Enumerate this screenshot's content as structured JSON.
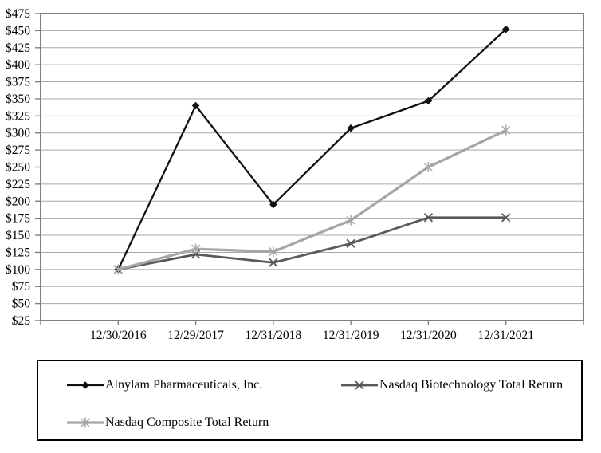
{
  "chart_data": {
    "type": "line",
    "title": "",
    "xlabel": "",
    "ylabel": "",
    "x_categories": [
      "12/30/2016",
      "12/29/2017",
      "12/31/2018",
      "12/31/2019",
      "12/31/2020",
      "12/31/2021"
    ],
    "ylim": [
      25,
      475
    ],
    "y_tick_step": 25,
    "y_tick_prefix": "$",
    "y_tick_labels": [
      "$475",
      "$450",
      "$425",
      "$400",
      "$375",
      "$350",
      "$325",
      "$300",
      "$275",
      "$250",
      "$225",
      "$200",
      "$175",
      "$150",
      "$125",
      "$100",
      "$75",
      "$50",
      "$25"
    ],
    "grid": "horizontal",
    "legend_position": "bottom-box",
    "series": [
      {
        "name": "Alnylam Pharmaceuticals, Inc.",
        "marker": "diamond",
        "color": "#111111",
        "line_width": 2.3,
        "values": [
          100,
          340,
          195,
          307,
          347,
          452
        ]
      },
      {
        "name": "Nasdaq Biotechnology Total Return",
        "marker": "x",
        "color": "#595959",
        "line_width": 2.8,
        "values": [
          100,
          122,
          110,
          138,
          176,
          176
        ]
      },
      {
        "name": "Nasdaq Composite Total Return",
        "marker": "asterisk",
        "color": "#a6a6a6",
        "line_width": 3.2,
        "values": [
          100,
          130,
          126,
          172,
          250,
          304
        ]
      }
    ],
    "colors": {
      "plot_border": "#808080",
      "gridline": "#a8a8a8",
      "tick": "#808080",
      "axis_text": "#000000",
      "legend_border": "#000000"
    }
  }
}
